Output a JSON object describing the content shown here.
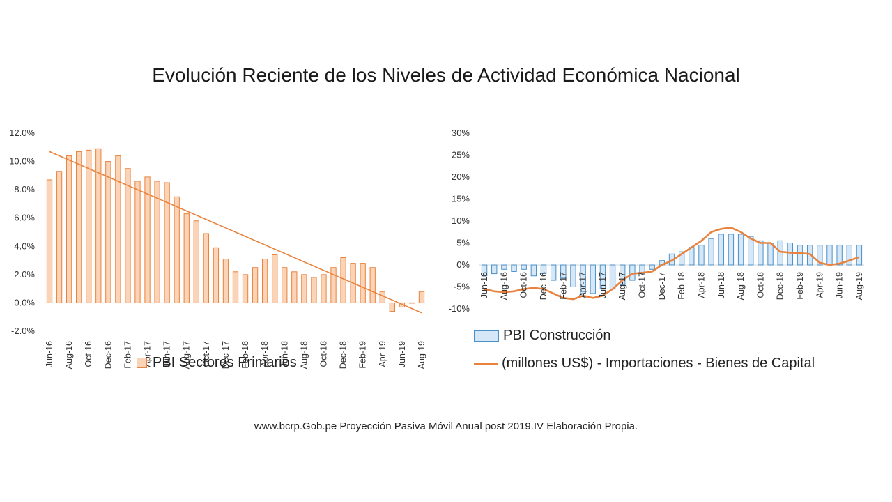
{
  "title": "Evolución Reciente de los Niveles de Actividad Económica Nacional",
  "footer": "www.bcrp.Gob.pe Proyección Pasiva Móvil Anual post 2019.IV Elaboración Propia.",
  "colors": {
    "orange": "#e8823d",
    "orange_fill": "#fbd3b7",
    "blue": "#4a90c8",
    "blue_fill": "#d6e8f7",
    "axis": "#d9d9d9"
  },
  "chart_data": [
    {
      "type": "bar",
      "categories": [
        "Jun-16",
        "Jul-16",
        "Aug-16",
        "Sep-16",
        "Oct-16",
        "Nov-16",
        "Dec-16",
        "Jan-17",
        "Feb-17",
        "Mar-17",
        "Apr-17",
        "May-17",
        "Jun-17",
        "Jul-17",
        "Aug-17",
        "Sep-17",
        "Oct-17",
        "Nov-17",
        "Dec-17",
        "Jan-18",
        "Feb-18",
        "Mar-18",
        "Apr-18",
        "May-18",
        "Jun-18",
        "Jul-18",
        "Aug-18",
        "Sep-18",
        "Oct-18",
        "Nov-18",
        "Dec-18",
        "Jan-19",
        "Feb-19",
        "Mar-19",
        "Apr-19",
        "May-19",
        "Jun-19",
        "Jul-19",
        "Aug-19"
      ],
      "x_tick_labels": [
        "Jun-16",
        "Aug-16",
        "Oct-16",
        "Dec-16",
        "Feb-17",
        "Apr-17",
        "Jun-17",
        "Aug-17",
        "Oct-17",
        "Dec-17",
        "Feb-18",
        "Apr-18",
        "Jun-18",
        "Aug-18",
        "Oct-18",
        "Dec-18",
        "Feb-19",
        "Apr-19",
        "Jun-19",
        "Aug-19"
      ],
      "series": [
        {
          "name": "PBI Sectores Primarios",
          "values": [
            8.7,
            9.3,
            10.4,
            10.7,
            10.8,
            10.9,
            10.0,
            10.4,
            9.5,
            8.6,
            8.9,
            8.6,
            8.5,
            7.5,
            6.3,
            5.8,
            4.9,
            3.9,
            3.1,
            2.2,
            2.0,
            2.5,
            3.1,
            3.4,
            2.5,
            2.2,
            2.0,
            1.8,
            2.0,
            2.5,
            3.2,
            2.8,
            2.8,
            2.5,
            0.8,
            -0.6,
            -0.3,
            0.0,
            0.8
          ]
        }
      ],
      "trendline": {
        "start": 10.7,
        "end": -0.7
      },
      "ylim": [
        -2.0,
        12.0
      ],
      "y_ticks": [
        "-2.0%",
        "0.0%",
        "2.0%",
        "4.0%",
        "6.0%",
        "8.0%",
        "10.0%",
        "12.0%"
      ],
      "legend": "bottom"
    },
    {
      "type": "bar",
      "categories": [
        "Jun-16",
        "Jul-16",
        "Aug-16",
        "Sep-16",
        "Oct-16",
        "Nov-16",
        "Dec-16",
        "Jan-17",
        "Feb-17",
        "Mar-17",
        "Apr-17",
        "May-17",
        "Jun-17",
        "Jul-17",
        "Aug-17",
        "Sep-17",
        "Oct-17",
        "Nov-17",
        "Dec-17",
        "Jan-18",
        "Feb-18",
        "Mar-18",
        "Apr-18",
        "May-18",
        "Jun-18",
        "Jul-18",
        "Aug-18",
        "Sep-18",
        "Oct-18",
        "Nov-18",
        "Dec-18",
        "Jan-19",
        "Feb-19",
        "Mar-19",
        "Apr-19",
        "May-19",
        "Jun-19",
        "Jul-19",
        "Aug-19"
      ],
      "x_tick_labels": [
        "Jun-16",
        "Aug-16",
        "Oct-16",
        "Dec-16",
        "Feb-17",
        "Apr-17",
        "Jun-17",
        "Aug-17",
        "Oct-17",
        "Dec-17",
        "Feb-18",
        "Apr-18",
        "Jun-18",
        "Aug-18",
        "Oct-18",
        "Dec-18",
        "Feb-19",
        "Apr-19",
        "Jun-19",
        "Aug-19"
      ],
      "series": [
        {
          "name": "PBI Construcción",
          "type": "bar",
          "values": [
            -2.5,
            -2.0,
            -1.0,
            -1.5,
            -1.0,
            -2.5,
            -2.0,
            -3.5,
            -3.0,
            -5.0,
            -6.5,
            -6.5,
            -5.5,
            -5.5,
            -4.5,
            -3.5,
            -2.0,
            -1.0,
            1.0,
            2.5,
            3.0,
            4.0,
            4.5,
            6.0,
            7.0,
            7.0,
            7.0,
            6.5,
            5.5,
            5.0,
            5.5,
            5.0,
            4.5,
            4.5,
            4.5,
            4.5,
            4.5,
            4.5,
            4.5
          ]
        },
        {
          "name": "(millones US$) - Importaciones - Bienes de Capital",
          "type": "line",
          "values": [
            -5.5,
            -6.0,
            -6.2,
            -6.0,
            -5.5,
            -5.2,
            -5.5,
            -6.5,
            -7.5,
            -7.8,
            -7.0,
            -7.5,
            -7.0,
            -5.5,
            -3.5,
            -2.0,
            -1.8,
            -1.5,
            0.0,
            1.0,
            2.5,
            4.0,
            5.5,
            7.5,
            8.2,
            8.5,
            7.5,
            6.0,
            5.0,
            5.0,
            3.0,
            2.8,
            2.7,
            2.5,
            0.5,
            0.0,
            0.3,
            1.0,
            1.8
          ]
        }
      ],
      "ylim": [
        -10,
        30
      ],
      "y_ticks": [
        "-10%",
        "-5%",
        "0%",
        "5%",
        "10%",
        "15%",
        "20%",
        "25%",
        "30%"
      ],
      "legend": "bottom"
    }
  ]
}
